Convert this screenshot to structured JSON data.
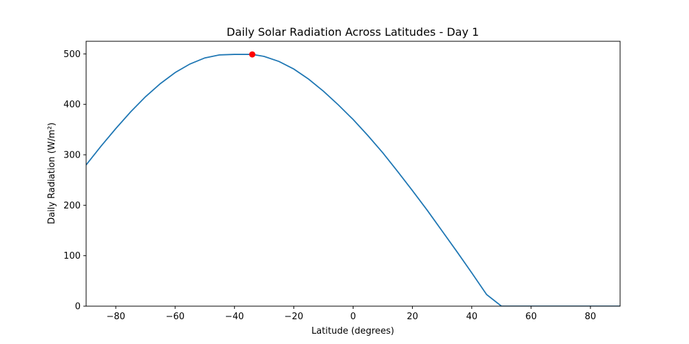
{
  "chart_data": {
    "type": "line",
    "title": "Daily Solar Radiation Across Latitudes - Day 1",
    "xlabel": "Latitude (degrees)",
    "ylabel": "Daily Radiation (W/m²)",
    "xlim": [
      -90,
      90
    ],
    "ylim": [
      0,
      525
    ],
    "xticks": [
      -80,
      -60,
      -40,
      -20,
      0,
      20,
      40,
      60,
      80
    ],
    "xtick_labels": [
      "−80",
      "−60",
      "−40",
      "−20",
      "0",
      "20",
      "40",
      "60",
      "80"
    ],
    "yticks": [
      0,
      100,
      200,
      300,
      400,
      500
    ],
    "ytick_labels": [
      "0",
      "100",
      "200",
      "300",
      "400",
      "500"
    ],
    "grid": false,
    "series": [
      {
        "color": "#1f77b4",
        "x": [
          -90,
          -85,
          -80,
          -75,
          -70,
          -65,
          -60,
          -55,
          -50,
          -45,
          -40,
          -35,
          -34,
          -30,
          -25,
          -20,
          -15,
          -10,
          -5,
          0,
          5,
          10,
          15,
          20,
          25,
          30,
          35,
          40,
          45,
          50,
          55,
          56,
          57,
          60,
          65,
          70,
          75,
          80,
          85,
          90
        ],
        "y": [
          280,
          317,
          352,
          385,
          415,
          441,
          463,
          480,
          492,
          498,
          499,
          499,
          499,
          495,
          485,
          470,
          450,
          426,
          399,
          370,
          338,
          304,
          267,
          229,
          190,
          149,
          108,
          66,
          23,
          0,
          0,
          0,
          0,
          0,
          0,
          0,
          0,
          0,
          0,
          0
        ]
      }
    ],
    "highlight": {
      "x": -34,
      "y": 499,
      "color": "#ff0000"
    }
  }
}
